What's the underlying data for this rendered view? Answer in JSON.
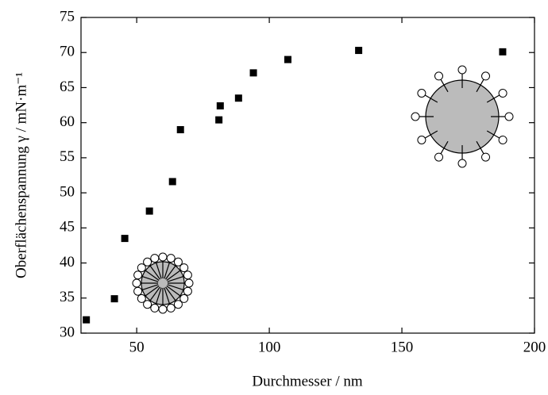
{
  "chart_data": {
    "type": "scatter",
    "x_label": "Durchmesser / nm",
    "y_label": "Oberflächenspannung γ / mN·m⁻¹",
    "color": "#000000",
    "series": [
      {
        "x": [
          31,
          41.6,
          45.5,
          54.8,
          63.5,
          66.5,
          81,
          81.5,
          88.4,
          94,
          107,
          133.7,
          188
        ],
        "values": [
          31.9,
          34.9,
          43.5,
          47.4,
          51.6,
          59,
          60.4,
          62.4,
          63.5,
          67.1,
          69,
          70.3,
          70.1
        ]
      }
    ],
    "xlim": [
      29,
      200
    ],
    "xticks": [
      50,
      100,
      150,
      200
    ],
    "ylim": [
      30,
      75
    ],
    "yticks": [
      30,
      35,
      40,
      45,
      50,
      55,
      60,
      65,
      70,
      75
    ]
  }
}
